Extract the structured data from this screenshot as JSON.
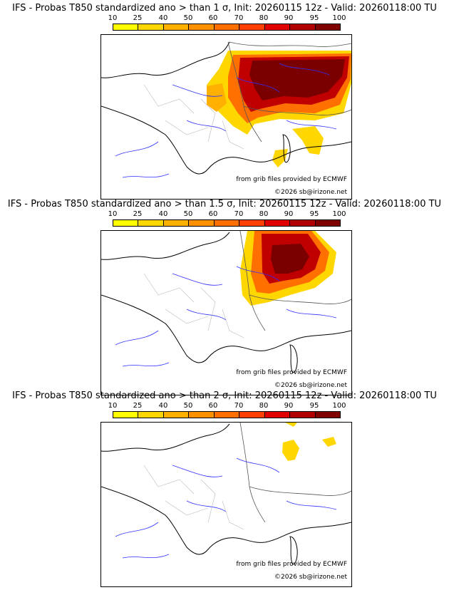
{
  "legend": {
    "ticks": [
      "10",
      "25",
      "40",
      "50",
      "60",
      "70",
      "80",
      "90",
      "95",
      "100"
    ],
    "colors": [
      "#ffff00",
      "#ffd700",
      "#ffb000",
      "#ff9000",
      "#ff7000",
      "#ff4000",
      "#e00000",
      "#b00000",
      "#800000"
    ]
  },
  "panels": [
    {
      "title": "IFS - Probas T850  standardized ano > than 1 σ, Init: 20260115 12z - Valid: 20260118:00 TU",
      "credit_line1": "from grib files provided by ECMWF",
      "credit_line2": "©2026 sb@irizone.net"
    },
    {
      "title": "IFS - Probas T850  standardized ano > than 1.5 σ, Init: 20260115 12z - Valid: 20260118:00 TU",
      "credit_line1": "from grib files provided by ECMWF",
      "credit_line2": "©2026 sb@irizone.net"
    },
    {
      "title": "IFS - Probas T850  standardized ano > than 2 σ, Init: 20260115 12z - Valid: 20260118:00 TU",
      "credit_line1": "from grib files provided by ECMWF",
      "credit_line2": "©2026 sb@irizone.net"
    }
  ]
}
